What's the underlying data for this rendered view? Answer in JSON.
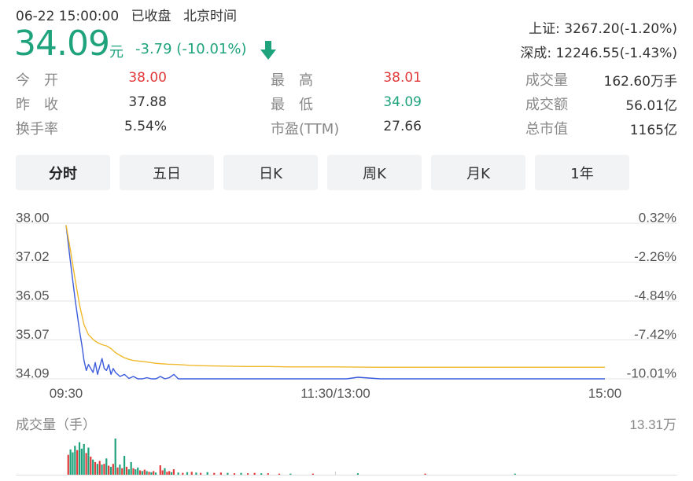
{
  "header": {
    "date_time": "06-22 15:00:00",
    "market_status": "已收盘",
    "timezone": "北京时间"
  },
  "quote": {
    "price": "34.09",
    "unit": "元",
    "change": "-3.79 (-10.01%)",
    "direction": "down",
    "color_down": "#1fa37d",
    "color_up": "#e23a3a"
  },
  "indices": [
    {
      "name": "上证",
      "value": "3267.20(-1.20%)"
    },
    {
      "name": "深成",
      "value": "12246.55(-1.43%)"
    }
  ],
  "stats": [
    {
      "label": "今　开",
      "value": "38.00",
      "tone": "up"
    },
    {
      "label": "昨　收",
      "value": "37.88",
      "tone": "neutral"
    },
    {
      "label": "换手率",
      "value": "5.54%",
      "tone": "neutral"
    },
    {
      "label": "最　高",
      "value": "38.01",
      "tone": "up"
    },
    {
      "label": "最　低",
      "value": "34.09",
      "tone": "down"
    },
    {
      "label": "市盈(TTM)",
      "value": "27.66",
      "tone": "neutral"
    },
    {
      "label": "成交量",
      "value": "162.60万手",
      "tone": "neutral"
    },
    {
      "label": "成交额",
      "value": "56.01亿",
      "tone": "neutral"
    },
    {
      "label": "总市值",
      "value": "1165亿",
      "tone": "neutral"
    }
  ],
  "tabs": [
    {
      "label": "分时",
      "active": true
    },
    {
      "label": "五日",
      "active": false
    },
    {
      "label": "日K",
      "active": false
    },
    {
      "label": "周K",
      "active": false
    },
    {
      "label": "月K",
      "active": false
    },
    {
      "label": "1年",
      "active": false
    }
  ],
  "chart_data": {
    "type": "line",
    "x_ticks": [
      "09:30",
      "11:30/13:00",
      "15:00"
    ],
    "x_range_minutes": [
      0,
      240
    ],
    "ylim": [
      34.09,
      38.0
    ],
    "y_ticks": [
      "38.00",
      "37.02",
      "36.05",
      "35.07",
      "34.09"
    ],
    "y2_ticks": [
      "0.32%",
      "-2.26%",
      "-4.84%",
      "-7.42%",
      "-10.01%"
    ],
    "grid": true,
    "series": [
      {
        "role": "price",
        "color": "#3b5bdb",
        "x": [
          0,
          2,
          4,
          6,
          7,
          8,
          9,
          10,
          11,
          12,
          13,
          14,
          15,
          16,
          17,
          18,
          19,
          20,
          21,
          22,
          23,
          24,
          26,
          28,
          30,
          32,
          34,
          36,
          38,
          40,
          42,
          44,
          46,
          48,
          50,
          55,
          60,
          80,
          100,
          120,
          125,
          130,
          140,
          160,
          180,
          200,
          220,
          240
        ],
        "y": [
          37.95,
          37.0,
          36.1,
          35.3,
          34.95,
          34.55,
          34.3,
          34.45,
          34.35,
          34.25,
          34.5,
          34.2,
          34.4,
          34.6,
          34.35,
          34.3,
          34.45,
          34.2,
          34.35,
          34.25,
          34.2,
          34.15,
          34.2,
          34.1,
          34.15,
          34.09,
          34.09,
          34.12,
          34.09,
          34.09,
          34.15,
          34.09,
          34.12,
          34.2,
          34.09,
          34.09,
          34.09,
          34.09,
          34.09,
          34.09,
          34.09,
          34.13,
          34.09,
          34.09,
          34.09,
          34.09,
          34.09,
          34.09
        ]
      },
      {
        "role": "average",
        "color": "#f0b92c",
        "x": [
          0,
          2,
          4,
          6,
          8,
          10,
          12,
          14,
          16,
          18,
          20,
          22,
          24,
          26,
          28,
          30,
          35,
          40,
          45,
          50,
          55,
          60,
          70,
          80,
          90,
          100,
          120,
          140,
          160,
          180,
          200,
          220,
          240
        ],
        "y": [
          37.95,
          37.3,
          36.6,
          35.95,
          35.45,
          35.2,
          35.08,
          35.0,
          34.95,
          34.92,
          34.85,
          34.75,
          34.68,
          34.62,
          34.58,
          34.55,
          34.52,
          34.48,
          34.46,
          34.45,
          34.43,
          34.42,
          34.41,
          34.4,
          34.4,
          34.39,
          34.39,
          34.38,
          34.38,
          34.38,
          34.38,
          34.38,
          34.38
        ]
      }
    ]
  },
  "volume": {
    "label": "成交量（手）",
    "max_label": "13.31万",
    "bars": [
      {
        "m": 1,
        "v": 0.55,
        "c": "up"
      },
      {
        "m": 2,
        "v": 0.7,
        "c": "down"
      },
      {
        "m": 3,
        "v": 0.62,
        "c": "down"
      },
      {
        "m": 4,
        "v": 0.8,
        "c": "down"
      },
      {
        "m": 5,
        "v": 0.68,
        "c": "up"
      },
      {
        "m": 6,
        "v": 0.9,
        "c": "down"
      },
      {
        "m": 7,
        "v": 0.72,
        "c": "down"
      },
      {
        "m": 8,
        "v": 0.85,
        "c": "down"
      },
      {
        "m": 9,
        "v": 0.6,
        "c": "up"
      },
      {
        "m": 10,
        "v": 0.75,
        "c": "down"
      },
      {
        "m": 11,
        "v": 0.5,
        "c": "up"
      },
      {
        "m": 12,
        "v": 0.42,
        "c": "down"
      },
      {
        "m": 13,
        "v": 0.35,
        "c": "up"
      },
      {
        "m": 14,
        "v": 0.3,
        "c": "down"
      },
      {
        "m": 15,
        "v": 0.38,
        "c": "up"
      },
      {
        "m": 16,
        "v": 0.28,
        "c": "down"
      },
      {
        "m": 17,
        "v": 0.3,
        "c": "up"
      },
      {
        "m": 18,
        "v": 0.45,
        "c": "down"
      },
      {
        "m": 19,
        "v": 0.25,
        "c": "up"
      },
      {
        "m": 20,
        "v": 0.22,
        "c": "down"
      },
      {
        "m": 21,
        "v": 0.3,
        "c": "up"
      },
      {
        "m": 22,
        "v": 1.0,
        "c": "down"
      },
      {
        "m": 23,
        "v": 0.2,
        "c": "up"
      },
      {
        "m": 24,
        "v": 0.28,
        "c": "down"
      },
      {
        "m": 25,
        "v": 0.18,
        "c": "up"
      },
      {
        "m": 26,
        "v": 0.52,
        "c": "down"
      },
      {
        "m": 27,
        "v": 0.22,
        "c": "up"
      },
      {
        "m": 28,
        "v": 0.15,
        "c": "down"
      },
      {
        "m": 29,
        "v": 0.35,
        "c": "down"
      },
      {
        "m": 30,
        "v": 0.18,
        "c": "up"
      },
      {
        "m": 31,
        "v": 0.15,
        "c": "down"
      },
      {
        "m": 32,
        "v": 0.2,
        "c": "down"
      },
      {
        "m": 33,
        "v": 0.12,
        "c": "up"
      },
      {
        "m": 34,
        "v": 0.1,
        "c": "down"
      },
      {
        "m": 35,
        "v": 0.14,
        "c": "up"
      },
      {
        "m": 36,
        "v": 0.1,
        "c": "down"
      },
      {
        "m": 37,
        "v": 0.08,
        "c": "up"
      },
      {
        "m": 38,
        "v": 0.07,
        "c": "down"
      },
      {
        "m": 39,
        "v": 0.1,
        "c": "up"
      },
      {
        "m": 40,
        "v": 0.06,
        "c": "down"
      },
      {
        "m": 42,
        "v": 0.26,
        "c": "up"
      },
      {
        "m": 43,
        "v": 0.12,
        "c": "up"
      },
      {
        "m": 44,
        "v": 0.18,
        "c": "down"
      },
      {
        "m": 45,
        "v": 0.08,
        "c": "up"
      },
      {
        "m": 46,
        "v": 0.1,
        "c": "up"
      },
      {
        "m": 47,
        "v": 0.07,
        "c": "down"
      },
      {
        "m": 48,
        "v": 0.15,
        "c": "up"
      },
      {
        "m": 50,
        "v": 0.06,
        "c": "down"
      },
      {
        "m": 52,
        "v": 0.05,
        "c": "up"
      },
      {
        "m": 54,
        "v": 0.07,
        "c": "down"
      },
      {
        "m": 56,
        "v": 0.08,
        "c": "up"
      },
      {
        "m": 58,
        "v": 0.06,
        "c": "down"
      },
      {
        "m": 60,
        "v": 0.05,
        "c": "up"
      },
      {
        "m": 63,
        "v": 0.07,
        "c": "down"
      },
      {
        "m": 66,
        "v": 0.05,
        "c": "up"
      },
      {
        "m": 69,
        "v": 0.06,
        "c": "up"
      },
      {
        "m": 72,
        "v": 0.05,
        "c": "down"
      },
      {
        "m": 75,
        "v": 0.04,
        "c": "up"
      },
      {
        "m": 78,
        "v": 0.05,
        "c": "down"
      },
      {
        "m": 81,
        "v": 0.04,
        "c": "up"
      },
      {
        "m": 84,
        "v": 0.05,
        "c": "up"
      },
      {
        "m": 87,
        "v": 0.04,
        "c": "down"
      },
      {
        "m": 90,
        "v": 0.04,
        "c": "up"
      },
      {
        "m": 95,
        "v": 0.03,
        "c": "up"
      },
      {
        "m": 100,
        "v": 0.03,
        "c": "down"
      },
      {
        "m": 110,
        "v": 0.03,
        "c": "up"
      },
      {
        "m": 130,
        "v": 0.04,
        "c": "down"
      },
      {
        "m": 160,
        "v": 0.03,
        "c": "up"
      },
      {
        "m": 200,
        "v": 0.03,
        "c": "down"
      }
    ]
  }
}
